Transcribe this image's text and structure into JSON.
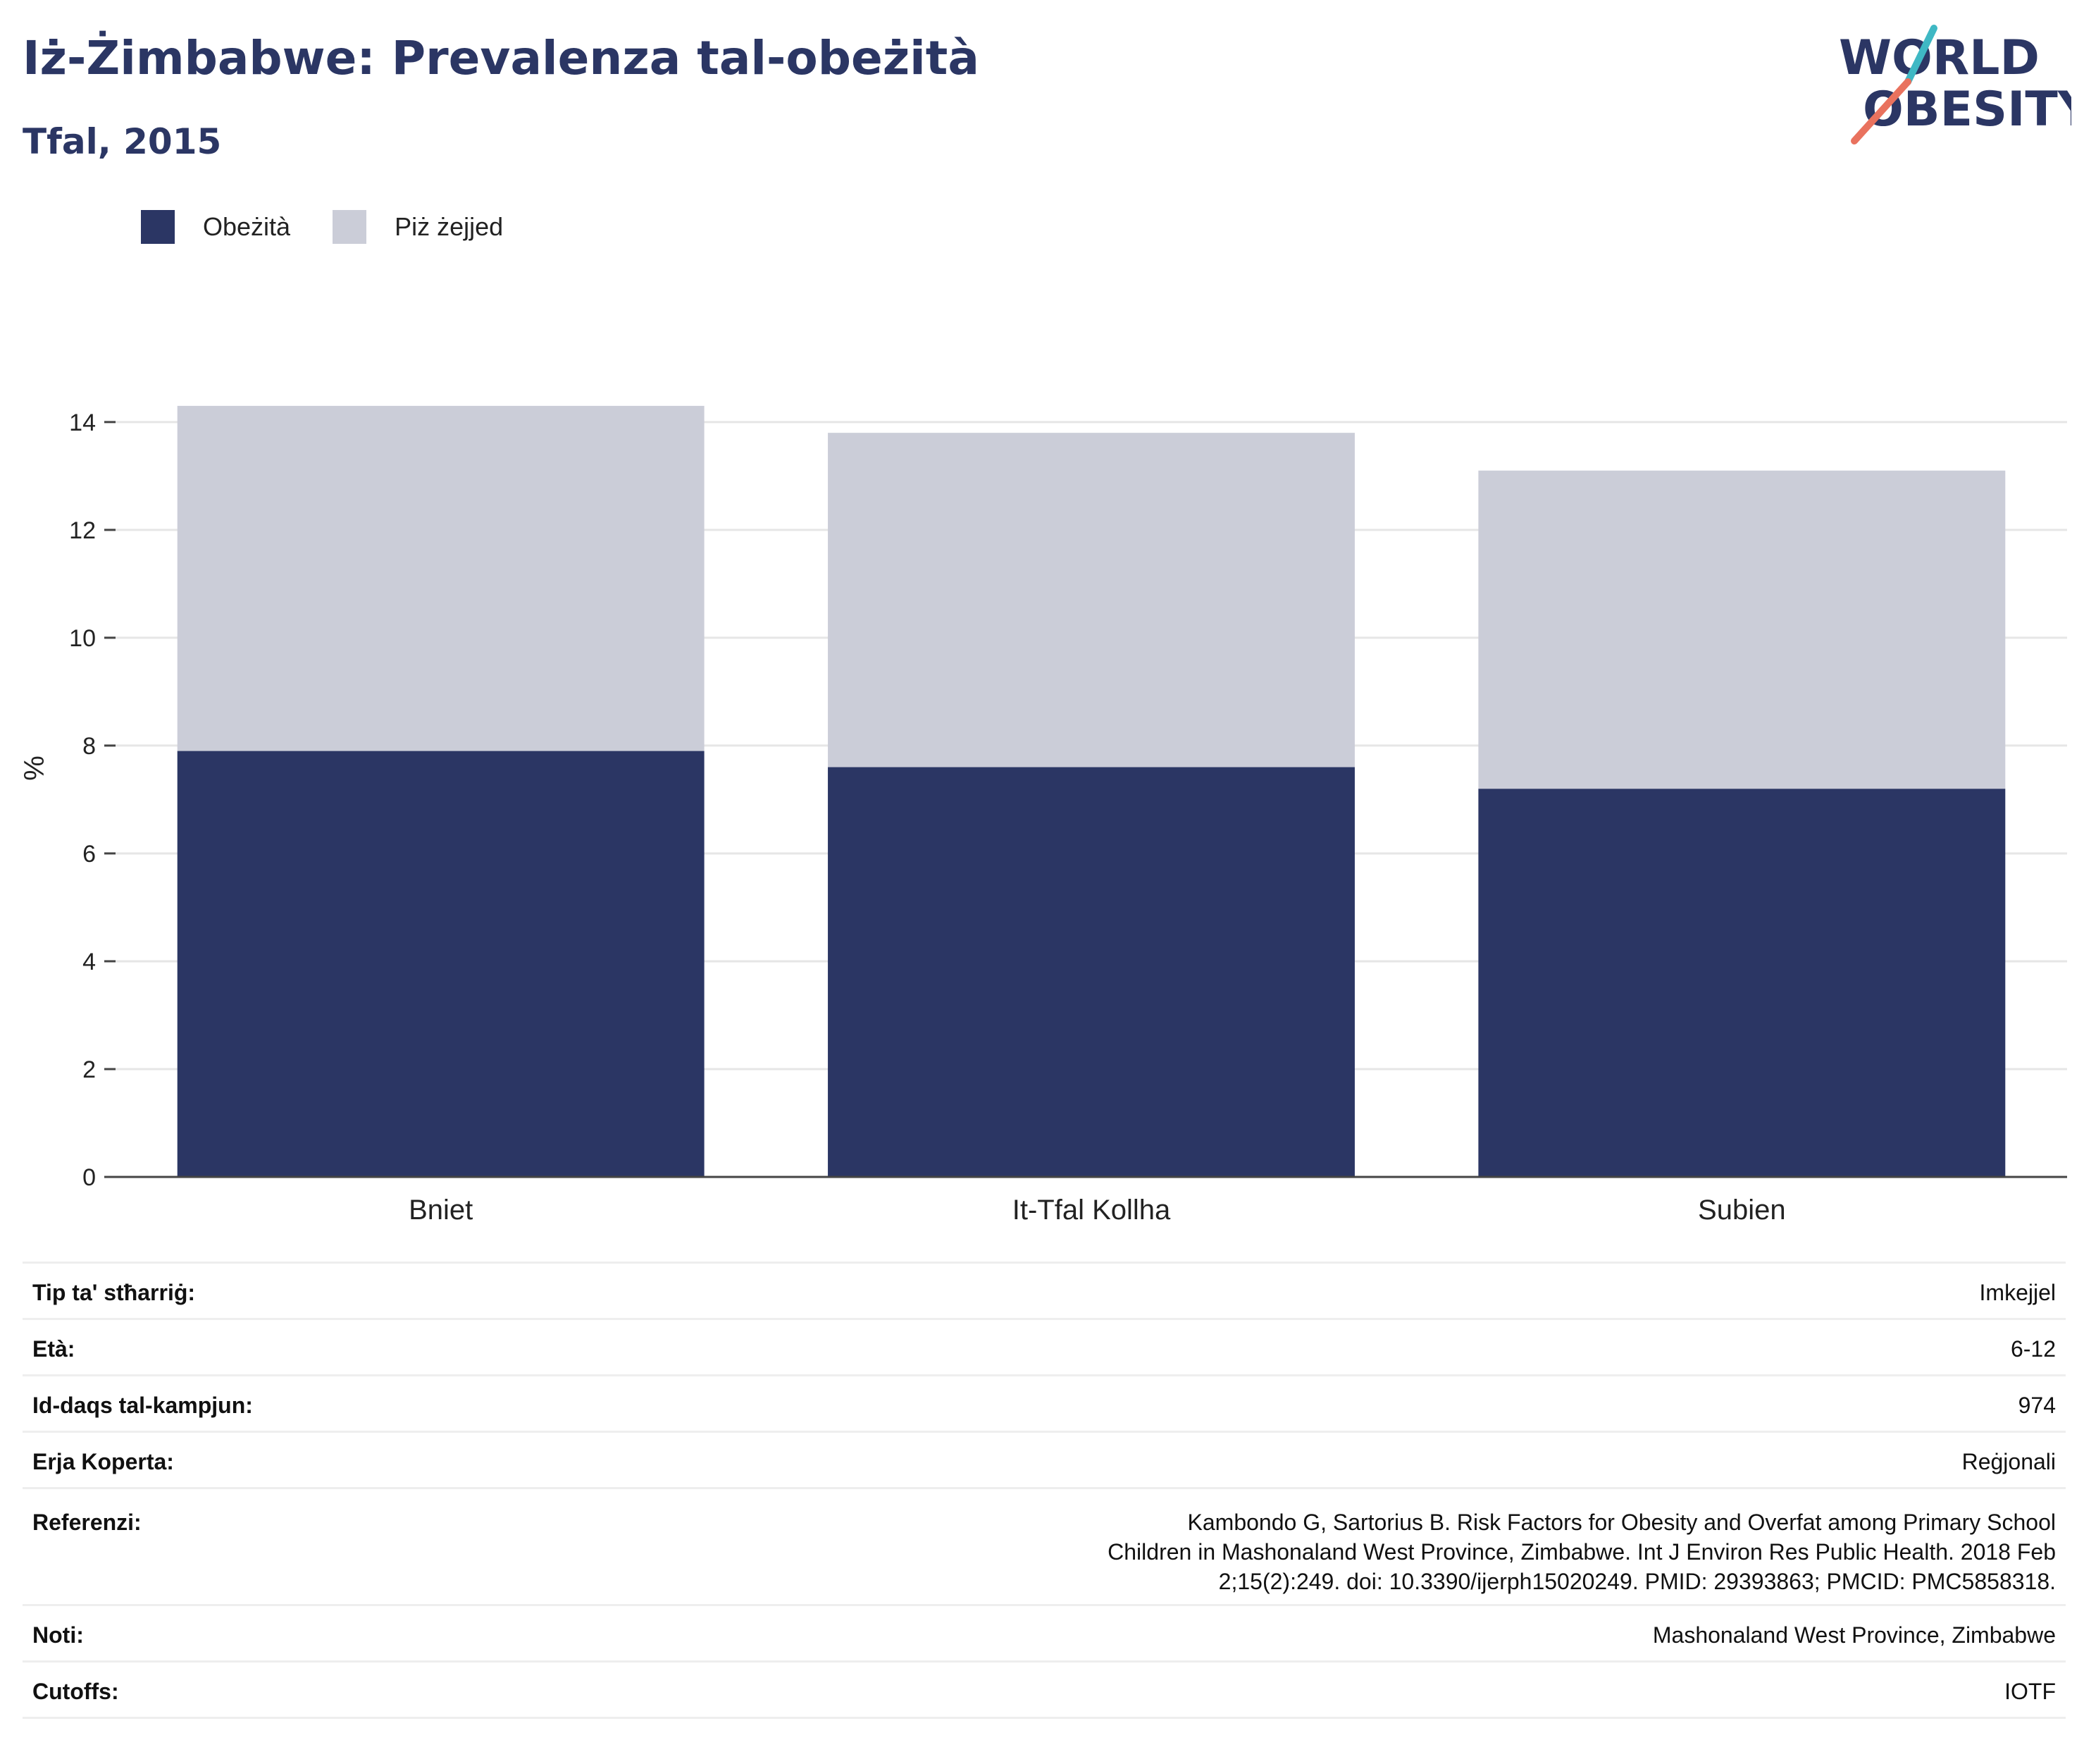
{
  "header": {
    "title": "Iż-Żimbabwe: Prevalenza tal-obeżità",
    "subtitle": "Tfal, 2015"
  },
  "logo": {
    "line1": "WORLD",
    "line2": "OBESITY",
    "colors": {
      "text": "#2b3664",
      "slash_top": "#3fb8c4",
      "slash_bottom": "#e9725e"
    }
  },
  "colors": {
    "obese": "#2b3664",
    "overweight": "#cbcdd8",
    "grid": "#e6e6e6",
    "axis": "#444444"
  },
  "chart_data": {
    "type": "bar",
    "stacked": true,
    "categories": [
      "Bniet",
      "It-Tfal Kollha",
      "Subien"
    ],
    "series": [
      {
        "name": "Obeżità",
        "color": "#2b3664",
        "values": [
          7.9,
          7.6,
          7.2
        ]
      },
      {
        "name": "Piż żejjed",
        "color": "#cbcdd8",
        "values": [
          6.4,
          6.2,
          5.9
        ]
      }
    ],
    "ylabel": "%",
    "ylim": [
      0,
      14.9
    ],
    "yticks": [
      0,
      2,
      4,
      6,
      8,
      10,
      12,
      14
    ],
    "grid": true,
    "legend_position": "top-left"
  },
  "details": [
    {
      "label": "Tip ta' stħarriġ:",
      "value": "Imkejjel"
    },
    {
      "label": "Età:",
      "value": "6-12"
    },
    {
      "label": "Id-daqs tal-kampjun:",
      "value": "974"
    },
    {
      "label": "Erja Koperta:",
      "value": "Reġjonali"
    },
    {
      "label": "Referenzi:",
      "value": "Kambondo G, Sartorius B. Risk Factors for Obesity and Overfat among Primary School Children in Mashonaland West Province, Zimbabwe. Int J Environ Res Public Health. 2018 Feb 2;15(2):249. doi: 10.3390/ijerph15020249. PMID: 29393863; PMCID: PMC5858318."
    },
    {
      "label": "Noti:",
      "value": "Mashonaland West Province, Zimbabwe"
    },
    {
      "label": "Cutoffs:",
      "value": "IOTF"
    }
  ]
}
